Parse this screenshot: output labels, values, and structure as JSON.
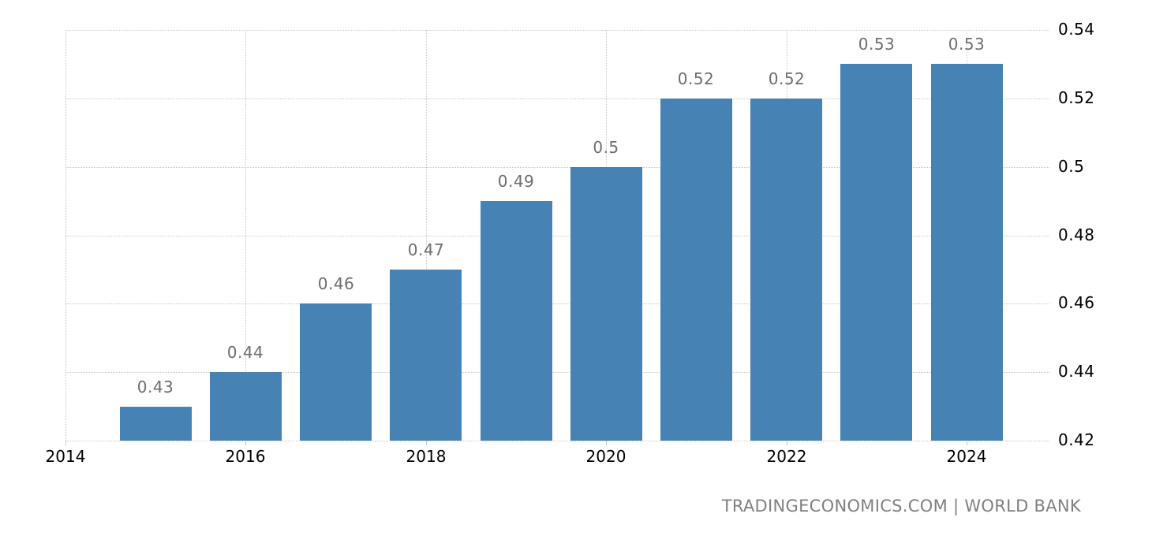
{
  "chart_data": {
    "type": "bar",
    "title": "",
    "xlabel": "",
    "ylabel": "",
    "categories": [
      "2015",
      "2016",
      "2017",
      "2018",
      "2019",
      "2020",
      "2021",
      "2022",
      "2023",
      "2024"
    ],
    "values": [
      0.43,
      0.44,
      0.46,
      0.47,
      0.49,
      0.5,
      0.52,
      0.52,
      0.53,
      0.53
    ],
    "data_labels": [
      "0.43",
      "0.44",
      "0.46",
      "0.47",
      "0.49",
      "0.5",
      "0.52",
      "0.52",
      "0.53",
      "0.53"
    ],
    "ylim": [
      0.42,
      0.54
    ],
    "y_ticks": [
      "0.54",
      "0.52",
      "0.5",
      "0.48",
      "0.46",
      "0.44",
      "0.42"
    ],
    "x_ticks": [
      "2014",
      "2016",
      "2018",
      "2020",
      "2022",
      "2024"
    ],
    "y_axis_position": "right",
    "grid": true,
    "legend": null,
    "bar_color": "#4682b4",
    "label_color": "#6e6e6e"
  },
  "source": "TRADINGECONOMICS.COM | WORLD BANK"
}
